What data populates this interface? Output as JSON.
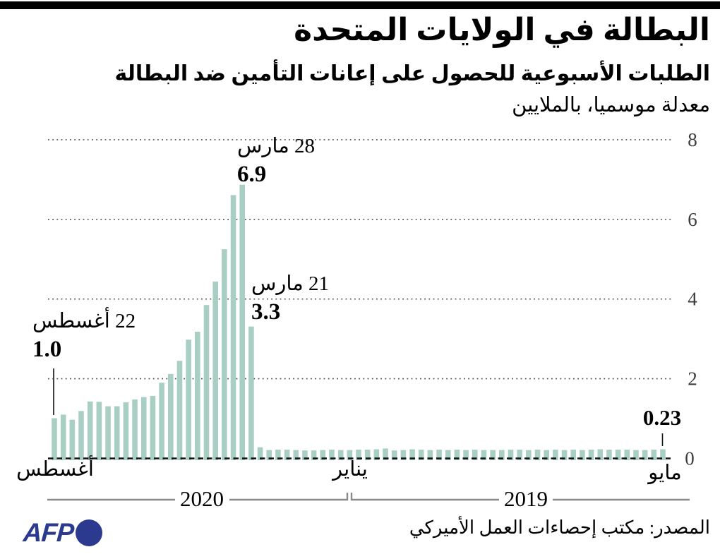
{
  "header": {
    "title": "البطالة في الولايات المتحدة",
    "subtitle": "الطلبات الأسبوعية للحصول على إعانات التأمين ضد البطالة",
    "unit_note": "معدلة موسميا، بالملايين"
  },
  "chart_data": {
    "type": "bar",
    "title": "البطالة في الولايات المتحدة",
    "subtitle": "الطلبات الأسبوعية للحصول على إعانات التأمين ضد البطالة",
    "unit": "بالملايين (millions, seasonally adjusted)",
    "orientation": "time flows right-to-left: rightmost bar = May 2019, leftmost bar = 22 August 2020, weekly data",
    "values": [
      1.01,
      1.1,
      0.97,
      1.19,
      1.43,
      1.42,
      1.31,
      1.31,
      1.41,
      1.48,
      1.54,
      1.57,
      1.9,
      2.12,
      2.45,
      2.98,
      3.18,
      3.85,
      4.44,
      5.25,
      6.61,
      6.87,
      3.31,
      0.28,
      0.21,
      0.22,
      0.22,
      0.21,
      0.2,
      0.2,
      0.21,
      0.22,
      0.21,
      0.21,
      0.22,
      0.22,
      0.23,
      0.25,
      0.2,
      0.21,
      0.23,
      0.22,
      0.21,
      0.22,
      0.21,
      0.22,
      0.21,
      0.22,
      0.21,
      0.21,
      0.21,
      0.22,
      0.22,
      0.21,
      0.22,
      0.21,
      0.22,
      0.21,
      0.22,
      0.21,
      0.22,
      0.23,
      0.22,
      0.22,
      0.22,
      0.21,
      0.21,
      0.22,
      0.23
    ],
    "values_order": "left-to-right as displayed (newest week first)",
    "y_axis": {
      "ticks": [
        0,
        2,
        4,
        6,
        8
      ],
      "range": [
        0,
        8
      ],
      "side": "right",
      "gridlines": "dotted horizontal"
    },
    "x_axis": {
      "month_labels": [
        "أغسطس",
        "يناير",
        "مايو"
      ],
      "year_labels": [
        "2020",
        "2019"
      ]
    },
    "annotations": [
      {
        "date_label": "28 مارس",
        "value_label": "6.9",
        "bar_index": 21
      },
      {
        "date_label": "21 مارس",
        "value_label": "3.3",
        "bar_index": 22
      },
      {
        "date_label": "22 أغسطس",
        "value_label": "1.0",
        "bar_index": 0
      },
      {
        "date_label": "",
        "value_label": "0.23",
        "bar_index": 68
      }
    ]
  },
  "footer": {
    "logo_text": "AFP",
    "source": "المصدر: مكتب إحصاءات العمل الأميركي"
  },
  "colors": {
    "bar": "#a9cfc4",
    "banner": "#000000",
    "afp_blue": "#2b3a8f",
    "axis_text": "#3a3a3a",
    "bracket_gray": "#8a8a8a"
  }
}
